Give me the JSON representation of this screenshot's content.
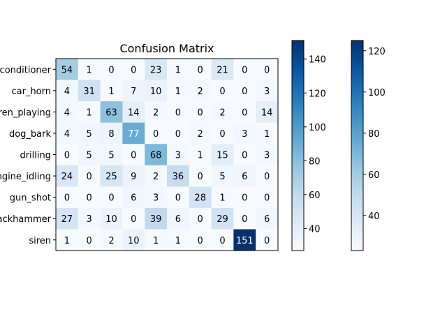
{
  "chart_data": {
    "type": "heatmap",
    "title": "Confusion Matrix",
    "row_labels": [
      "air_conditioner",
      "car_horn",
      "children_playing",
      "dog_bark",
      "drilling",
      "engine_idling",
      "gun_shot",
      "jackhammer",
      "siren"
    ],
    "row_labels_visible": [
      "nditioner",
      "car_horn",
      "en_playing",
      "dog_bark",
      "drilling",
      "gine_idling",
      "gun_shot",
      "ckhammer",
      "siren"
    ],
    "col_count": 10,
    "matrix": [
      [
        54,
        1,
        0,
        0,
        23,
        1,
        0,
        21,
        0,
        0
      ],
      [
        4,
        31,
        1,
        7,
        10,
        1,
        2,
        0,
        0,
        3
      ],
      [
        4,
        1,
        63,
        14,
        2,
        0,
        0,
        2,
        0,
        14
      ],
      [
        4,
        5,
        8,
        77,
        0,
        0,
        2,
        0,
        3,
        1
      ],
      [
        0,
        5,
        5,
        0,
        68,
        3,
        1,
        15,
        0,
        3
      ],
      [
        24,
        0,
        25,
        9,
        2,
        36,
        0,
        5,
        6,
        0
      ],
      [
        0,
        0,
        0,
        6,
        3,
        0,
        28,
        1,
        0,
        0
      ],
      [
        27,
        3,
        10,
        0,
        39,
        6,
        0,
        29,
        0,
        6
      ],
      [
        1,
        0,
        2,
        10,
        1,
        1,
        0,
        0,
        151,
        0
      ]
    ],
    "colormap": "Blues",
    "color_range": [
      0,
      151
    ],
    "colorbars": [
      {
        "visible_range": [
          27,
          151
        ],
        "ticks": [
          40,
          60,
          80,
          100,
          120,
          140
        ]
      },
      {
        "visible_range": [
          23,
          125
        ],
        "ticks": [
          40,
          60,
          80,
          100,
          120
        ]
      }
    ]
  }
}
